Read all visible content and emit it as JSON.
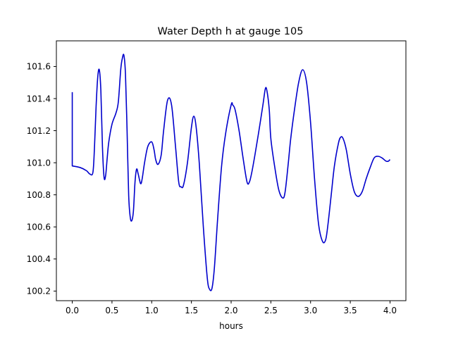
{
  "chart_data": {
    "type": "line",
    "title": "Water Depth h at gauge 105",
    "xlabel": "hours",
    "ylabel": "",
    "xlim": [
      -0.2,
      4.2
    ],
    "ylim": [
      100.14,
      101.76
    ],
    "xticks": [
      0.0,
      0.5,
      1.0,
      1.5,
      2.0,
      2.5,
      3.0,
      3.5,
      4.0
    ],
    "xtick_labels": [
      "0.0",
      "0.5",
      "1.0",
      "1.5",
      "2.0",
      "2.5",
      "3.0",
      "3.5",
      "4.0"
    ],
    "yticks": [
      100.2,
      100.4,
      100.6,
      100.8,
      101.0,
      101.2,
      101.4,
      101.6
    ],
    "ytick_labels": [
      "100.2",
      "100.4",
      "100.6",
      "100.8",
      "101.0",
      "101.2",
      "101.4",
      "101.6"
    ],
    "grid": false,
    "series": [
      {
        "color": "#0000cc",
        "x": [
          0.0,
          0.0,
          0.003,
          0.1,
          0.18,
          0.22,
          0.26,
          0.28,
          0.3,
          0.32,
          0.34,
          0.36,
          0.38,
          0.4,
          0.42,
          0.44,
          0.46,
          0.5,
          0.55,
          0.58,
          0.61,
          0.63,
          0.65,
          0.67,
          0.69,
          0.71,
          0.73,
          0.75,
          0.77,
          0.79,
          0.81,
          0.83,
          0.86,
          0.88,
          0.91,
          0.95,
          1.0,
          1.03,
          1.05,
          1.08,
          1.12,
          1.15,
          1.2,
          1.25,
          1.3,
          1.34,
          1.37,
          1.4,
          1.45,
          1.5,
          1.53,
          1.56,
          1.6,
          1.65,
          1.7,
          1.73,
          1.76,
          1.79,
          1.83,
          1.88,
          1.93,
          2.0,
          2.02,
          2.05,
          2.1,
          2.15,
          2.2,
          2.23,
          2.26,
          2.3,
          2.35,
          2.4,
          2.43,
          2.45,
          2.48,
          2.5,
          2.55,
          2.6,
          2.65,
          2.68,
          2.72,
          2.75,
          2.8,
          2.85,
          2.9,
          2.95,
          3.0,
          3.05,
          3.1,
          3.15,
          3.19,
          3.22,
          3.26,
          3.3,
          3.35,
          3.38,
          3.41,
          3.45,
          3.5,
          3.55,
          3.6,
          3.65,
          3.7,
          3.75,
          3.8,
          3.85,
          3.9,
          3.95,
          3.98,
          4.0
        ],
        "y": [
          101.44,
          100.98,
          100.98,
          100.97,
          100.95,
          100.93,
          100.94,
          101.1,
          101.35,
          101.53,
          101.58,
          101.45,
          101.1,
          100.91,
          100.92,
          101.03,
          101.13,
          101.24,
          101.31,
          101.38,
          101.58,
          101.65,
          101.67,
          101.55,
          101.2,
          100.8,
          100.66,
          100.64,
          100.7,
          100.88,
          100.96,
          100.93,
          100.87,
          100.9,
          101.0,
          101.1,
          101.13,
          101.08,
          101.02,
          100.99,
          101.05,
          101.2,
          101.39,
          101.36,
          101.1,
          100.88,
          100.85,
          100.86,
          101.0,
          101.22,
          101.29,
          101.22,
          100.99,
          100.6,
          100.28,
          100.21,
          100.22,
          100.35,
          100.65,
          100.98,
          101.18,
          101.36,
          101.36,
          101.33,
          101.2,
          101.03,
          100.88,
          100.88,
          100.94,
          101.05,
          101.2,
          101.36,
          101.46,
          101.45,
          101.33,
          101.15,
          100.97,
          100.83,
          100.78,
          100.82,
          101.0,
          101.15,
          101.34,
          101.5,
          101.58,
          101.5,
          101.25,
          100.9,
          100.62,
          100.51,
          100.52,
          100.62,
          100.8,
          100.98,
          101.12,
          101.16,
          101.15,
          101.08,
          100.93,
          100.82,
          100.79,
          100.82,
          100.9,
          100.97,
          101.03,
          101.04,
          101.03,
          101.01,
          101.01,
          101.02
        ]
      }
    ]
  }
}
